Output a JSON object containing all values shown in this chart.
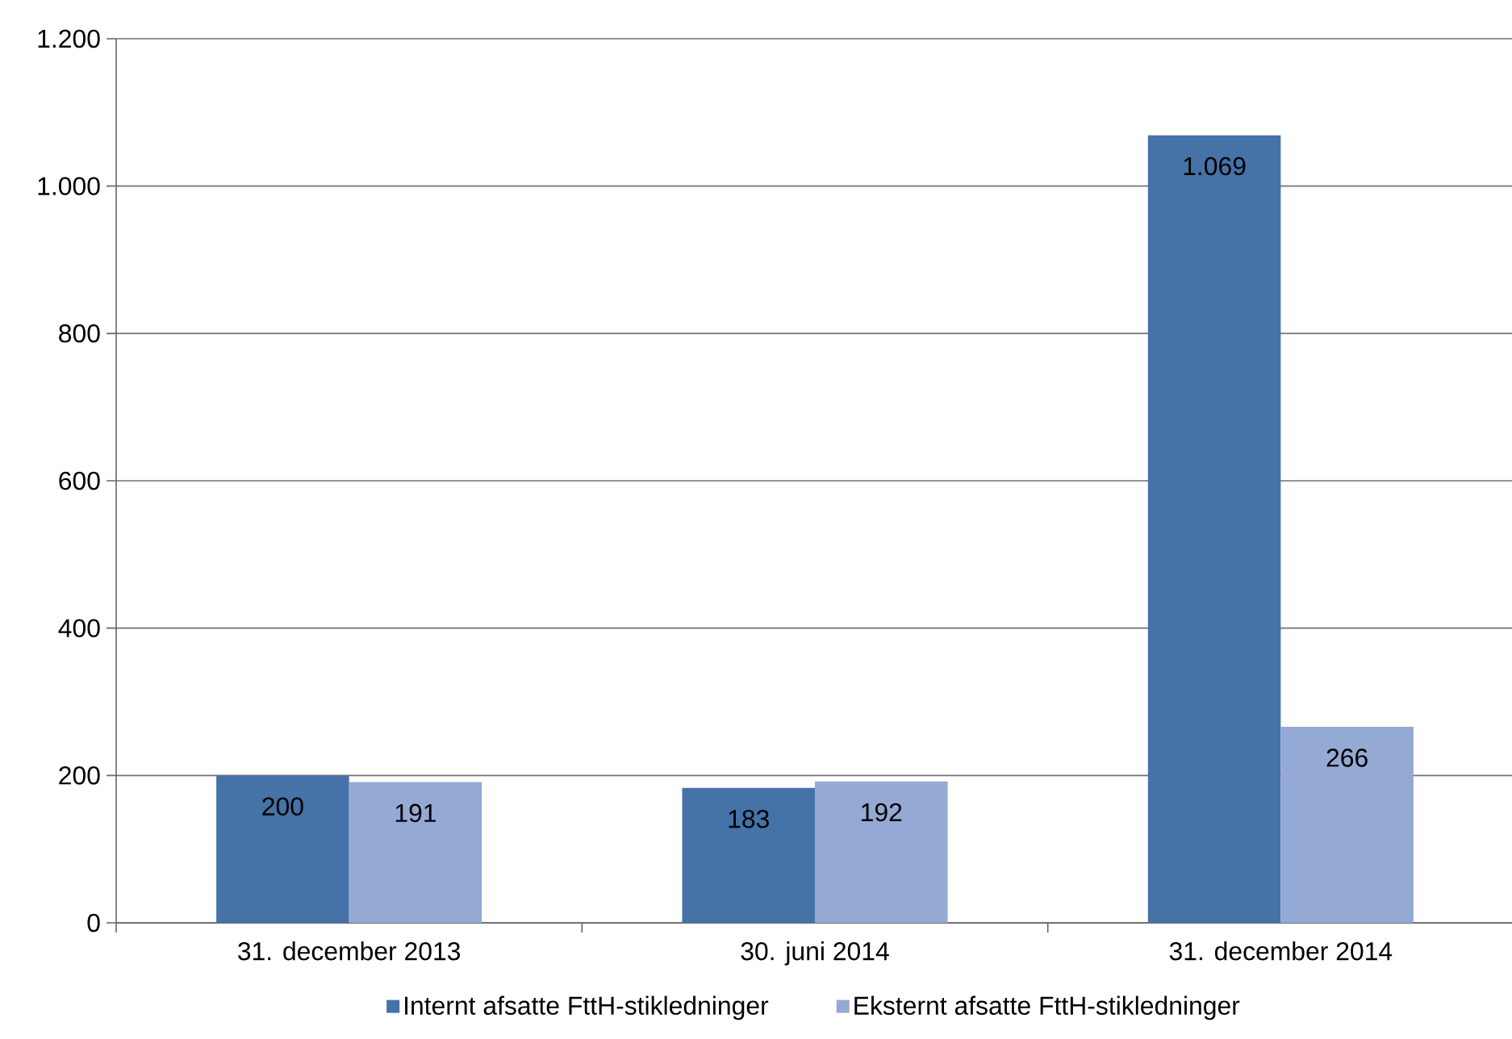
{
  "chart_data": {
    "type": "bar",
    "categories": [
      "31. december 2013",
      "30. juni 2014",
      "31. december 2014"
    ],
    "series": [
      {
        "name": "Internt afsatte FttH-stikledninger",
        "color": "#4572a7",
        "values": [
          200,
          183,
          1069
        ],
        "value_labels": [
          "200",
          "183",
          "1.069"
        ]
      },
      {
        "name": "Eksternt afsatte FttH-stikledninger",
        "color": "#94a9d3",
        "values": [
          191,
          192,
          266
        ],
        "value_labels": [
          "191",
          "192",
          "266"
        ]
      }
    ],
    "ylim": [
      0,
      1200
    ],
    "yticks": [
      0,
      200,
      400,
      600,
      800,
      {
        "value": 1000,
        "label": "1.000"
      },
      {
        "value": 1200,
        "label": "1.200"
      }
    ],
    "grid": "y",
    "legend": "bottom"
  }
}
